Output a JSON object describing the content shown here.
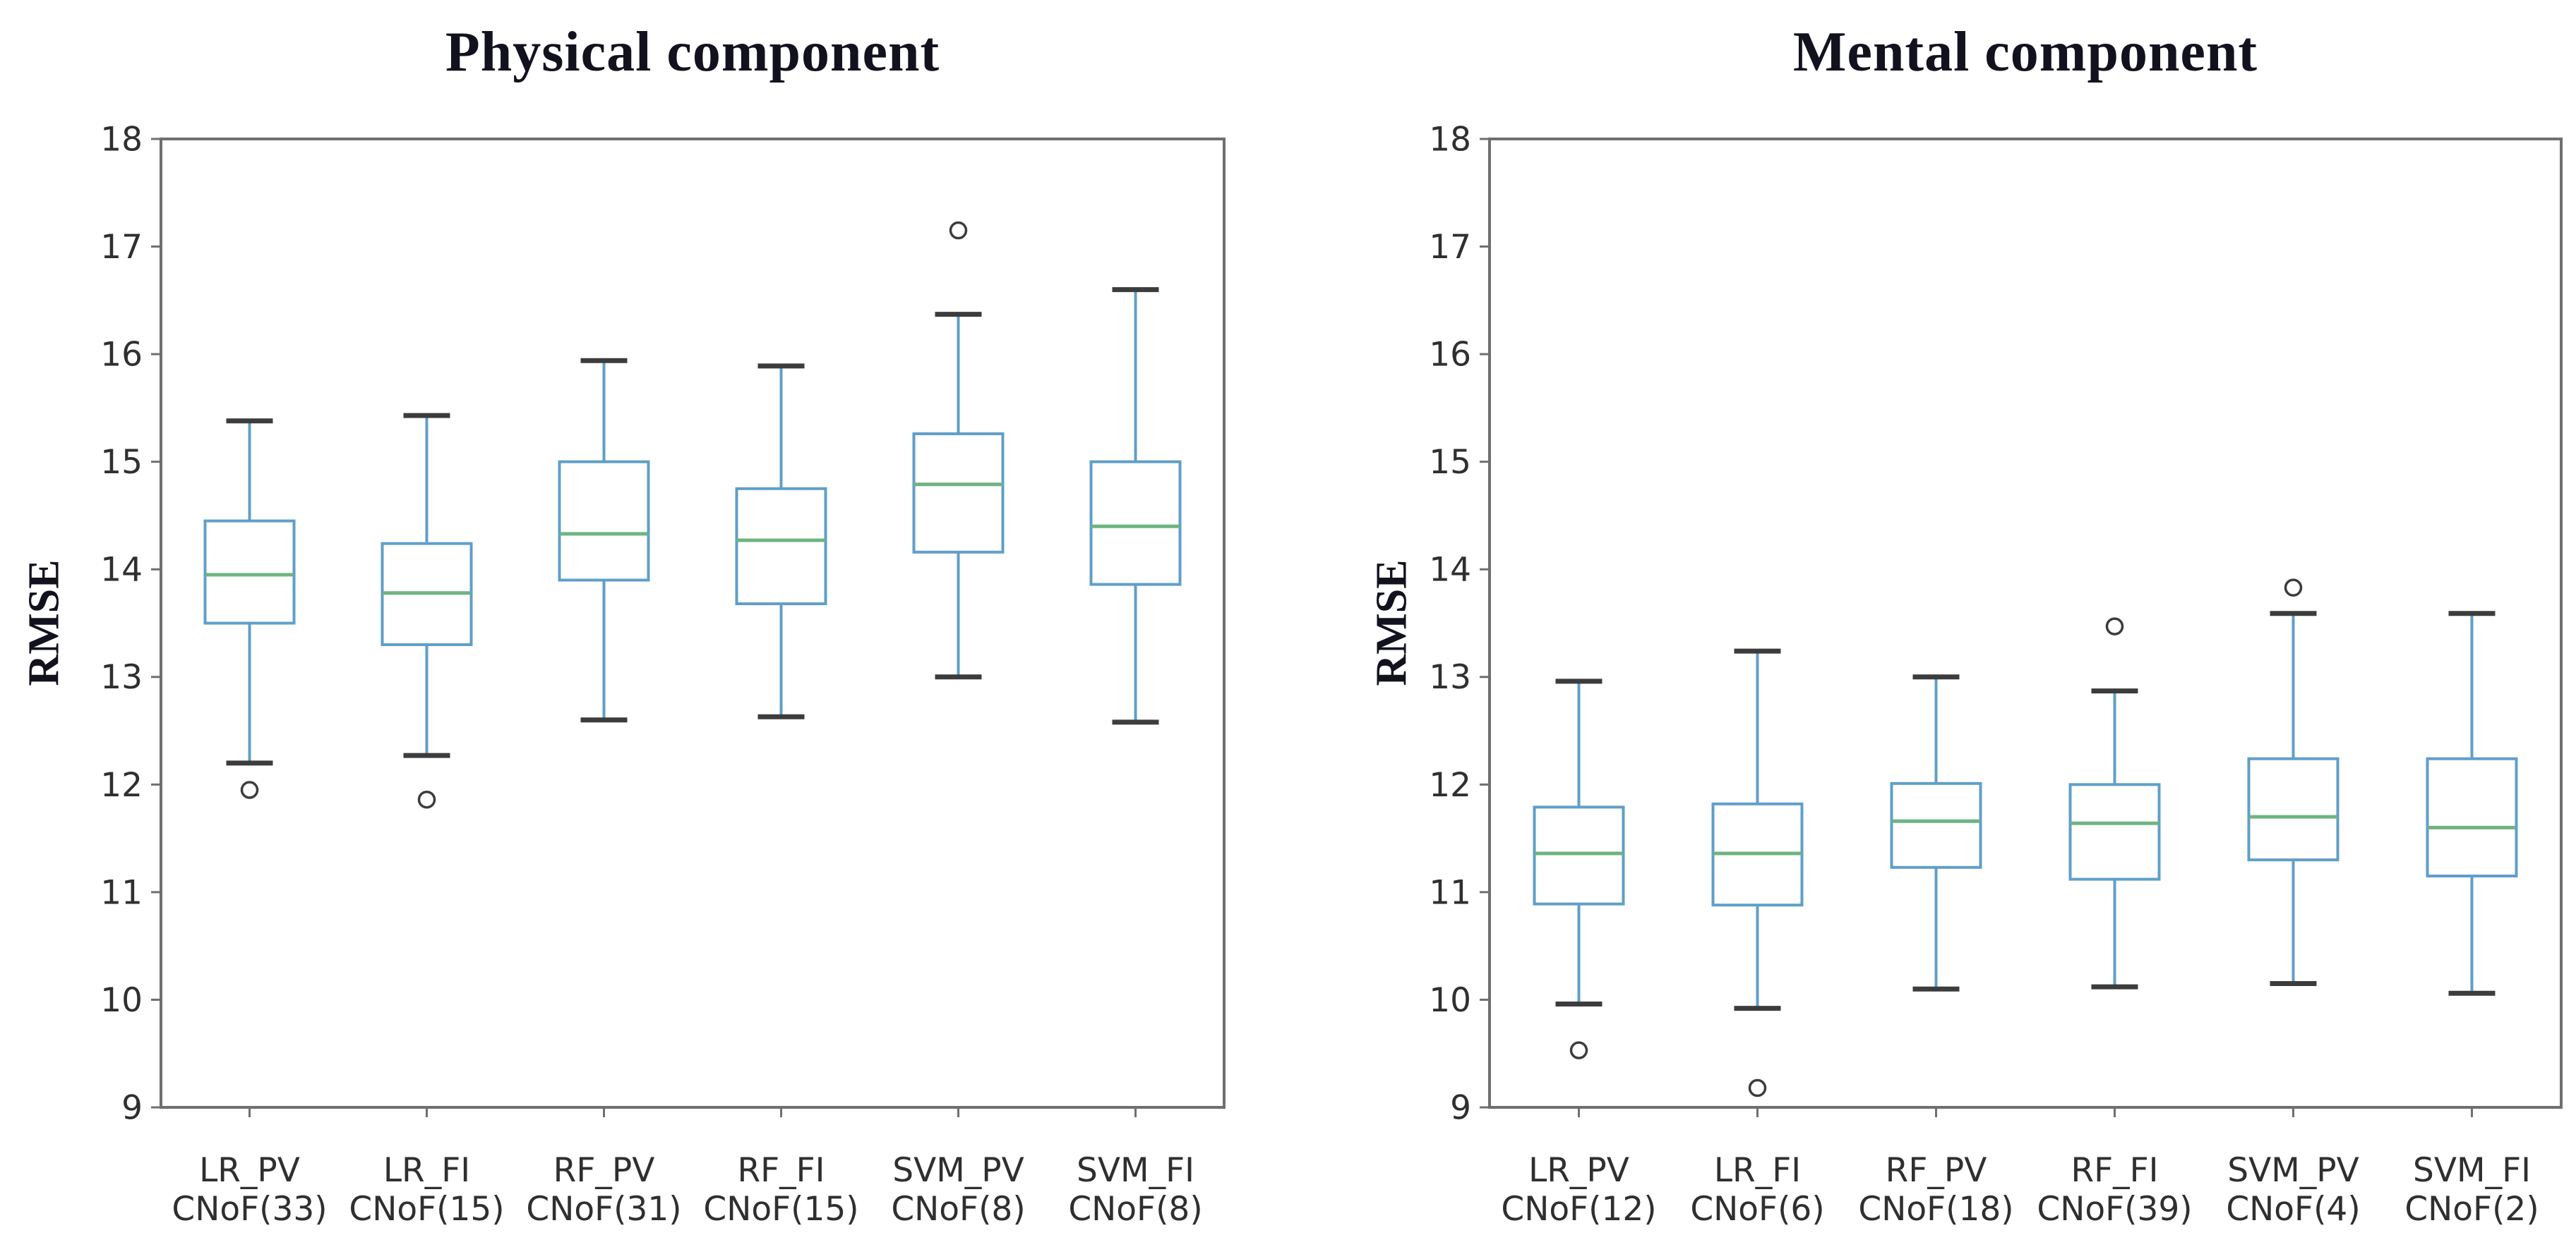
{
  "figure": {
    "background": "#ffffff"
  },
  "style": {
    "box_color": "#5f9fc8",
    "whisker_color": "#5f9fc8",
    "median_color": "#6eb482",
    "cap_color": "#3c3c3c",
    "outlier_color": "#3c3c3c",
    "spine_color": "#6f6f6f",
    "tick_label_color": "#2f2f2f",
    "title_color": "#12121f"
  },
  "chart_data": [
    {
      "type": "box",
      "title": "Physical component",
      "ylabel": "RMSE",
      "xlabel": "",
      "ylim": [
        9,
        18
      ],
      "yticks": [
        9,
        10,
        11,
        12,
        13,
        14,
        15,
        16,
        17,
        18
      ],
      "grid": false,
      "legend": null,
      "categories": [
        "LR_PV CNoF(33)",
        "LR_FI CNoF(15)",
        "RF_PV CNoF(31)",
        "RF_FI CNoF(15)",
        "SVM_PV CNoF(8)",
        "SVM_FI CNoF(8)"
      ],
      "boxes": [
        {
          "label": "LR_PV",
          "sublabel": "CNoF(33)",
          "whislo": 12.2,
          "q1": 13.5,
          "med": 13.95,
          "q3": 14.45,
          "whishi": 15.38,
          "outliers": [
            11.95
          ]
        },
        {
          "label": "LR_FI",
          "sublabel": "CNoF(15)",
          "whislo": 12.27,
          "q1": 13.3,
          "med": 13.78,
          "q3": 14.24,
          "whishi": 15.43,
          "outliers": [
            11.86
          ]
        },
        {
          "label": "RF_PV",
          "sublabel": "CNoF(31)",
          "whislo": 12.6,
          "q1": 13.9,
          "med": 14.33,
          "q3": 15.0,
          "whishi": 15.94,
          "outliers": []
        },
        {
          "label": "RF_FI",
          "sublabel": "CNoF(15)",
          "whislo": 12.63,
          "q1": 13.68,
          "med": 14.27,
          "q3": 14.75,
          "whishi": 15.89,
          "outliers": []
        },
        {
          "label": "SVM_PV",
          "sublabel": "CNoF(8)",
          "whislo": 13.0,
          "q1": 14.16,
          "med": 14.79,
          "q3": 15.26,
          "whishi": 16.37,
          "outliers": [
            17.15
          ]
        },
        {
          "label": "SVM_FI",
          "sublabel": "CNoF(8)",
          "whislo": 12.58,
          "q1": 13.86,
          "med": 14.4,
          "q3": 15.0,
          "whishi": 16.6,
          "outliers": []
        }
      ]
    },
    {
      "type": "box",
      "title": "Mental component",
      "ylabel": "RMSE",
      "xlabel": "",
      "ylim": [
        9,
        18
      ],
      "yticks": [
        9,
        10,
        11,
        12,
        13,
        14,
        15,
        16,
        17,
        18
      ],
      "grid": false,
      "legend": null,
      "categories": [
        "LR_PV CNoF(12)",
        "LR_FI CNoF(6)",
        "RF_PV CNoF(18)",
        "RF_FI CNoF(39)",
        "SVM_PV CNoF(4)",
        "SVM_FI CNoF(2)"
      ],
      "boxes": [
        {
          "label": "LR_PV",
          "sublabel": "CNoF(12)",
          "whislo": 9.96,
          "q1": 10.89,
          "med": 11.36,
          "q3": 11.79,
          "whishi": 12.96,
          "outliers": [
            9.53
          ]
        },
        {
          "label": "LR_FI",
          "sublabel": "CNoF(6)",
          "whislo": 9.92,
          "q1": 10.88,
          "med": 11.36,
          "q3": 11.82,
          "whishi": 13.24,
          "outliers": [
            9.18
          ]
        },
        {
          "label": "RF_PV",
          "sublabel": "CNoF(18)",
          "whislo": 10.1,
          "q1": 11.23,
          "med": 11.66,
          "q3": 12.01,
          "whishi": 13.0,
          "outliers": []
        },
        {
          "label": "RF_FI",
          "sublabel": "CNoF(39)",
          "whislo": 10.12,
          "q1": 11.12,
          "med": 11.64,
          "q3": 12.0,
          "whishi": 12.87,
          "outliers": [
            13.47
          ]
        },
        {
          "label": "SVM_PV",
          "sublabel": "CNoF(4)",
          "whislo": 10.15,
          "q1": 11.3,
          "med": 11.7,
          "q3": 12.24,
          "whishi": 13.59,
          "outliers": [
            13.83
          ]
        },
        {
          "label": "SVM_FI",
          "sublabel": "CNoF(2)",
          "whislo": 10.06,
          "q1": 11.15,
          "med": 11.6,
          "q3": 12.24,
          "whishi": 13.59,
          "outliers": []
        }
      ]
    }
  ]
}
